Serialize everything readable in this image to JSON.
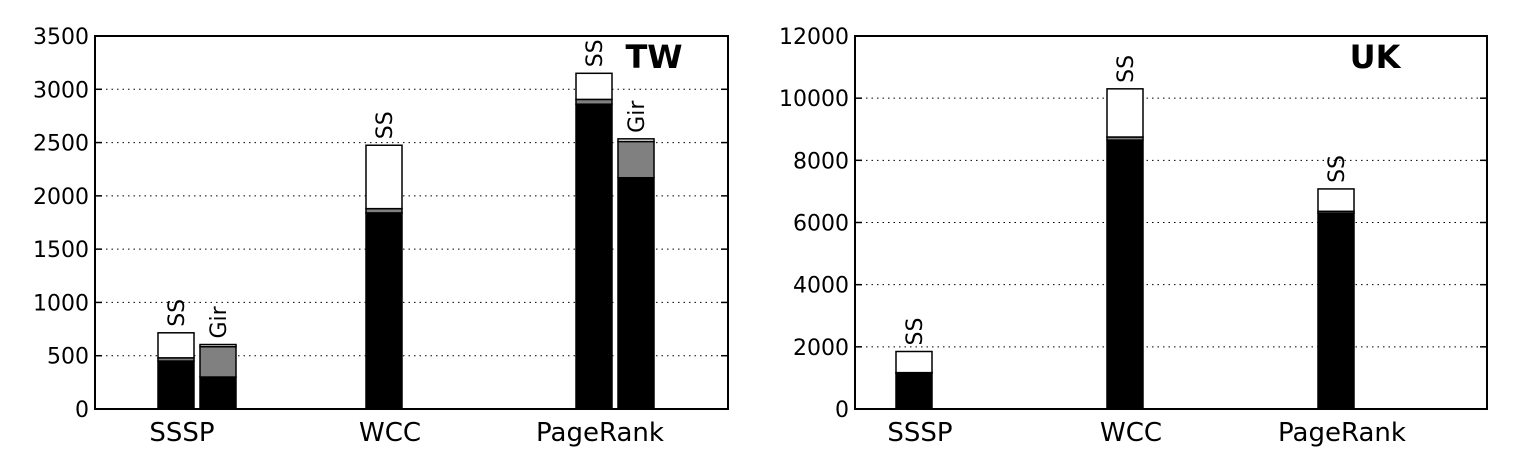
{
  "chart_data": [
    {
      "type": "bar",
      "stacked": true,
      "panel_label": "TW",
      "categories": [
        "SSSP",
        "WCC",
        "PageRank"
      ],
      "ylim": [
        0,
        3500
      ],
      "yticks": [
        0,
        500,
        1000,
        1500,
        2000,
        2500,
        3000,
        3500
      ],
      "grid": "y-dotted",
      "bars": [
        {
          "category": "SSSP",
          "label": "SS",
          "segments": [
            450,
            30,
            235
          ]
        },
        {
          "category": "SSSP",
          "label": "Gir",
          "segments": [
            300,
            285,
            20
          ]
        },
        {
          "category": "WCC",
          "label": "SS",
          "segments": [
            1840,
            40,
            595
          ]
        },
        {
          "category": "PageRank",
          "label": "SS",
          "segments": [
            2860,
            45,
            245
          ]
        },
        {
          "category": "PageRank",
          "label": "Gir",
          "segments": [
            2170,
            340,
            25
          ]
        }
      ]
    },
    {
      "type": "bar",
      "stacked": true,
      "panel_label": "UK",
      "categories": [
        "SSSP",
        "WCC",
        "PageRank"
      ],
      "ylim": [
        0,
        12000
      ],
      "yticks": [
        0,
        2000,
        4000,
        6000,
        8000,
        10000,
        12000
      ],
      "grid": "y-dotted",
      "bars": [
        {
          "category": "SSSP",
          "label": "SS",
          "segments": [
            1150,
            20,
            680
          ]
        },
        {
          "category": "WCC",
          "label": "SS",
          "segments": [
            8650,
            100,
            1550
          ]
        },
        {
          "category": "PageRank",
          "label": "SS",
          "segments": [
            6300,
            60,
            720
          ]
        }
      ]
    }
  ],
  "colors": {
    "segment_fills": [
      "#000000",
      "#808080",
      "#ffffff"
    ],
    "axis": "#000000",
    "grid": "#000000"
  }
}
